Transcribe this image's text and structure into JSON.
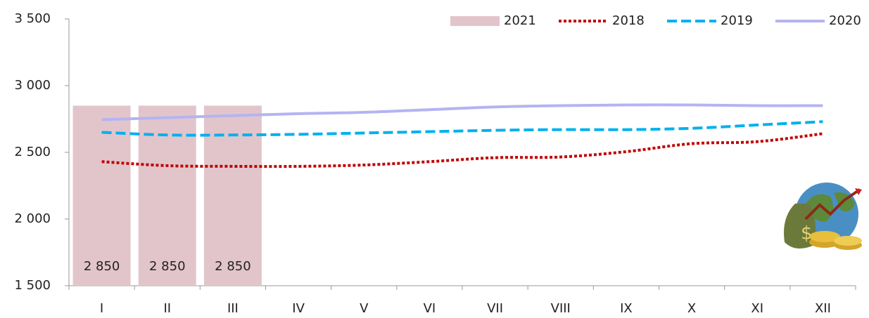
{
  "chart_data": {
    "type": "bar",
    "categories": [
      "I",
      "II",
      "III",
      "IV",
      "V",
      "VI",
      "VII",
      "VIII",
      "IX",
      "X",
      "XI",
      "XII"
    ],
    "series": [
      {
        "name": "2021",
        "type": "bar",
        "color": "#e2c5cb",
        "values": [
          2850,
          2850,
          2850,
          null,
          null,
          null,
          null,
          null,
          null,
          null,
          null,
          null
        ],
        "value_labels": [
          "2 850",
          "2 850",
          "2 850",
          null,
          null,
          null,
          null,
          null,
          null,
          null,
          null,
          null
        ]
      },
      {
        "name": "2018",
        "type": "line",
        "line_style": "dotted",
        "color": "#c00000",
        "values": [
          2430,
          2400,
          2395,
          2395,
          2405,
          2430,
          2460,
          2465,
          2505,
          2565,
          2580,
          2640
        ]
      },
      {
        "name": "2019",
        "type": "line",
        "line_style": "dashed",
        "color": "#00b0f0",
        "values": [
          2650,
          2630,
          2630,
          2635,
          2645,
          2655,
          2665,
          2670,
          2670,
          2680,
          2705,
          2730
        ]
      },
      {
        "name": "2020",
        "type": "line",
        "line_style": "solid",
        "color": "#b4b4f2",
        "values": [
          2745,
          2760,
          2775,
          2790,
          2800,
          2820,
          2840,
          2850,
          2855,
          2855,
          2850,
          2850
        ]
      }
    ],
    "ylim": [
      1500,
      3500
    ],
    "yticks": [
      {
        "value": 1500,
        "label": "1 500"
      },
      {
        "value": 2000,
        "label": "2 000"
      },
      {
        "value": 2500,
        "label": "2 500"
      },
      {
        "value": 3000,
        "label": "3 000"
      },
      {
        "value": 3500,
        "label": "3 500"
      }
    ],
    "legend": "top-right"
  }
}
